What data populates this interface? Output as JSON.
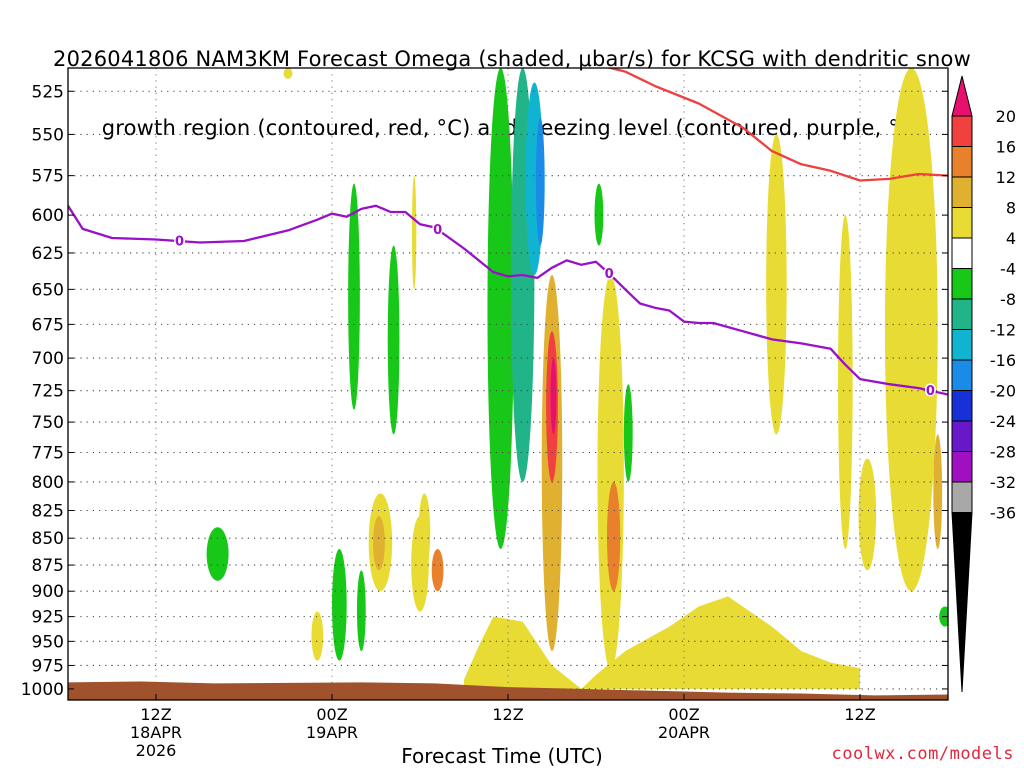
{
  "title": {
    "line1": "2026041806 NAM3KM Forecast Omega (shaded, μbar/s) for KCSG with dendritic snow",
    "line2": "growth region (contoured, red, °C) and freezing level (contoured, purple, °C)"
  },
  "credit": "coolwx.com/models",
  "chart_data": {
    "type": "heatmap",
    "xlabel": "Forecast Time (UTC)",
    "ylabel": "",
    "x_range_hours": [
      0,
      60
    ],
    "y_scale": "pressure (log-like, increasing downward)",
    "ylim": [
      1012,
      512
    ],
    "y_ticks": [
      525,
      550,
      575,
      600,
      625,
      650,
      675,
      700,
      725,
      750,
      775,
      800,
      825,
      850,
      875,
      900,
      925,
      950,
      975,
      1000
    ],
    "x_ticks": [
      {
        "hour": 6,
        "label1": "12Z",
        "label2": "18APR",
        "label3": "2026"
      },
      {
        "hour": 18,
        "label1": "00Z",
        "label2": "19APR",
        "label3": ""
      },
      {
        "hour": 30,
        "label1": "12Z",
        "label2": "",
        "label3": ""
      },
      {
        "hour": 42,
        "label1": "00Z",
        "label2": "20APR",
        "label3": ""
      },
      {
        "hour": 54,
        "label1": "12Z",
        "label2": "",
        "label3": ""
      }
    ],
    "grid": true,
    "colorbar": {
      "labels": [
        "20",
        "16",
        "12",
        "8",
        "4",
        "-4",
        "-8",
        "-12",
        "-16",
        "-20",
        "-24",
        "-28",
        "-32",
        "-36"
      ],
      "colors": [
        "#e8106e",
        "#f04040",
        "#e8802c",
        "#e0b030",
        "#e8dc34",
        "#ffffff",
        "#18c818",
        "#20b488",
        "#10b4d0",
        "#1a8ce8",
        "#1830d8",
        "#6818c8",
        "#a010c0",
        "#a8a8a8"
      ]
    },
    "series": [
      {
        "name": "freezing level",
        "color": "#9a10c8",
        "contour_label": "0",
        "points": [
          [
            0,
            594
          ],
          [
            1,
            609
          ],
          [
            3,
            615
          ],
          [
            6,
            616
          ],
          [
            9,
            618
          ],
          [
            12,
            617
          ],
          [
            15,
            610
          ],
          [
            17,
            603
          ],
          [
            18,
            599
          ],
          [
            19,
            601
          ],
          [
            20,
            596
          ],
          [
            21,
            594
          ],
          [
            22,
            598
          ],
          [
            23,
            598
          ],
          [
            24,
            606
          ],
          [
            25,
            608
          ],
          [
            27,
            622
          ],
          [
            29,
            638
          ],
          [
            30,
            641
          ],
          [
            31,
            640
          ],
          [
            32,
            642
          ],
          [
            33,
            635
          ],
          [
            34,
            630
          ],
          [
            35,
            633
          ],
          [
            36,
            631
          ],
          [
            37,
            640
          ],
          [
            38,
            650
          ],
          [
            39,
            660
          ],
          [
            40,
            663
          ],
          [
            41,
            665
          ],
          [
            42,
            673
          ],
          [
            43,
            674
          ],
          [
            44,
            674
          ],
          [
            46,
            680
          ],
          [
            48,
            686
          ],
          [
            50,
            689
          ],
          [
            52,
            693
          ],
          [
            53,
            705
          ],
          [
            54,
            716
          ],
          [
            56,
            720
          ],
          [
            58,
            723
          ],
          [
            60,
            728
          ]
        ]
      },
      {
        "name": "dendritic growth region",
        "color": "#ee4040",
        "points": [
          [
            36,
            510
          ],
          [
            38,
            514
          ],
          [
            40,
            522
          ],
          [
            43,
            532
          ],
          [
            46,
            546
          ],
          [
            48,
            560
          ],
          [
            50,
            568
          ],
          [
            52,
            572
          ],
          [
            54,
            578
          ],
          [
            56,
            577
          ],
          [
            58,
            574
          ],
          [
            60,
            575
          ]
        ]
      }
    ],
    "omega_cells": [
      {
        "h": 29.5,
        "p0": 512,
        "p1": 860,
        "v": -8,
        "w": 1.8
      },
      {
        "h": 31.0,
        "p0": 512,
        "p1": 800,
        "v": -12,
        "w": 1.6
      },
      {
        "h": 31.8,
        "p0": 520,
        "p1": 640,
        "v": -16,
        "w": 1.2
      },
      {
        "h": 32.2,
        "p0": 540,
        "p1": 620,
        "v": -20,
        "w": 0.6
      },
      {
        "h": 33.0,
        "p0": 640,
        "p1": 960,
        "v": 8,
        "w": 1.4
      },
      {
        "h": 33.0,
        "p0": 680,
        "p1": 800,
        "v": 16,
        "w": 0.8
      },
      {
        "h": 33.1,
        "p0": 700,
        "p1": 760,
        "v": 20,
        "w": 0.4
      },
      {
        "h": 37.0,
        "p0": 640,
        "p1": 980,
        "v": 4,
        "w": 1.8
      },
      {
        "h": 37.2,
        "p0": 800,
        "p1": 900,
        "v": 12,
        "w": 0.9
      },
      {
        "h": 25.2,
        "p0": 860,
        "p1": 900,
        "v": 12,
        "w": 0.8
      },
      {
        "h": 22.2,
        "p0": 620,
        "p1": 760,
        "v": -8,
        "w": 0.8
      },
      {
        "h": 19.5,
        "p0": 580,
        "p1": 740,
        "v": -8,
        "w": 0.8
      },
      {
        "h": 18.5,
        "p0": 860,
        "p1": 970,
        "v": -8,
        "w": 1.0
      },
      {
        "h": 20.0,
        "p0": 880,
        "p1": 960,
        "v": -8,
        "w": 0.6
      },
      {
        "h": 10.2,
        "p0": 840,
        "p1": 890,
        "v": -8,
        "w": 1.5
      },
      {
        "h": 38.2,
        "p0": 720,
        "p1": 800,
        "v": -8,
        "w": 0.6
      },
      {
        "h": 36.2,
        "p0": 580,
        "p1": 620,
        "v": -8,
        "w": 0.6
      },
      {
        "h": 59.8,
        "p0": 915,
        "p1": 935,
        "v": -8,
        "w": 0.8
      },
      {
        "h": 21.3,
        "p0": 810,
        "p1": 900,
        "v": 4,
        "w": 1.6
      },
      {
        "h": 21.2,
        "p0": 830,
        "p1": 880,
        "v": 8,
        "w": 0.8
      },
      {
        "h": 17.0,
        "p0": 920,
        "p1": 970,
        "v": 4,
        "w": 0.8
      },
      {
        "h": 24.0,
        "p0": 830,
        "p1": 920,
        "v": 4,
        "w": 1.2
      },
      {
        "h": 24.3,
        "p0": 810,
        "p1": 880,
        "v": 4,
        "w": 0.8
      },
      {
        "h": 48.3,
        "p0": 550,
        "p1": 760,
        "v": 4,
        "w": 1.4
      },
      {
        "h": 53.0,
        "p0": 600,
        "p1": 860,
        "v": 4,
        "w": 1.0
      },
      {
        "h": 54.5,
        "p0": 780,
        "p1": 880,
        "v": 4,
        "w": 1.2
      },
      {
        "h": 57.5,
        "p0": 512,
        "p1": 900,
        "v": 4,
        "w": 3.6
      },
      {
        "h": 59.3,
        "p0": 760,
        "p1": 860,
        "v": 8,
        "w": 0.6
      },
      {
        "h": 23.6,
        "p0": 575,
        "p1": 650,
        "v": 4,
        "w": 0.3
      },
      {
        "h": 15.0,
        "p0": 512,
        "p1": 518,
        "v": 4,
        "w": 0.6
      }
    ],
    "low_level_area": {
      "v": 4,
      "points": [
        [
          27,
          990
        ],
        [
          28,
          955
        ],
        [
          29,
          925
        ],
        [
          31,
          930
        ],
        [
          33,
          975
        ],
        [
          35,
          1000
        ],
        [
          36,
          985
        ],
        [
          38,
          960
        ],
        [
          41,
          935
        ],
        [
          43,
          915
        ],
        [
          45,
          905
        ],
        [
          46,
          915
        ],
        [
          48,
          935
        ],
        [
          50,
          960
        ],
        [
          52,
          972
        ],
        [
          54,
          978
        ],
        [
          54,
          1000
        ],
        [
          27,
          1000
        ]
      ]
    },
    "terrain": {
      "color": "#a0522d",
      "surface": [
        [
          0,
          993
        ],
        [
          5,
          992
        ],
        [
          10,
          994
        ],
        [
          20,
          993
        ],
        [
          25,
          994
        ],
        [
          30,
          998
        ],
        [
          35,
          1000
        ],
        [
          40,
          1002
        ],
        [
          45,
          1004
        ],
        [
          50,
          1005
        ],
        [
          55,
          1007
        ],
        [
          60,
          1006
        ]
      ]
    }
  }
}
